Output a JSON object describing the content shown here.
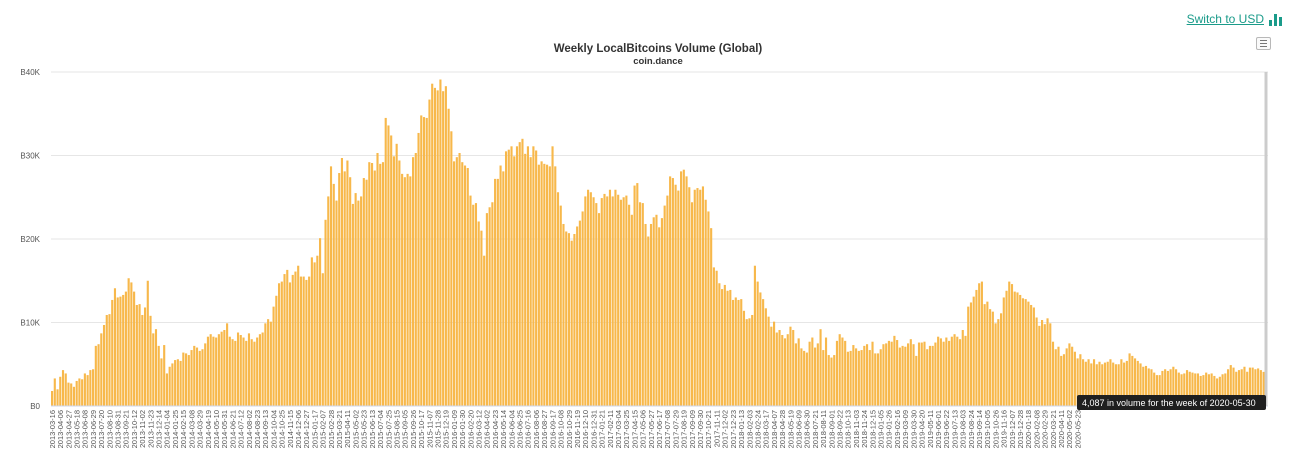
{
  "switch_link": {
    "label": "Switch to USD",
    "icon": "bar-chart-icon"
  },
  "menu": {
    "icon": "hamburger-menu-icon"
  },
  "tooltip": {
    "text": "4,087 in volume for the week of 2020-05-30"
  },
  "chart_data": {
    "type": "bar",
    "title": "Weekly LocalBitcoins Volume (Global)",
    "subtitle": "coin.dance",
    "color": "#F7B84B",
    "grid": true,
    "ylim": [
      0,
      40000
    ],
    "y_ticks": [
      "B0",
      "B10K",
      "B20K",
      "B30K",
      "B40K"
    ],
    "x_tick_labels": [
      "2013-03-16",
      "2013-04-06",
      "2013-04-27",
      "2013-05-18",
      "2013-06-08",
      "2013-06-29",
      "2013-07-20",
      "2013-08-10",
      "2013-08-31",
      "2013-09-21",
      "2013-10-12",
      "2013-11-02",
      "2013-11-23",
      "2013-12-14",
      "2014-01-04",
      "2014-01-25",
      "2014-02-15",
      "2014-03-08",
      "2014-03-29",
      "2014-04-19",
      "2014-05-10",
      "2014-05-31",
      "2014-06-21",
      "2014-07-12",
      "2014-08-02",
      "2014-08-23",
      "2014-09-13",
      "2014-10-04",
      "2014-10-25",
      "2014-11-15",
      "2014-12-06",
      "2014-12-27",
      "2015-01-17",
      "2015-02-07",
      "2015-02-28",
      "2015-03-21",
      "2015-04-11",
      "2015-05-02",
      "2015-05-23",
      "2015-06-13",
      "2015-07-04",
      "2015-07-25",
      "2015-08-15",
      "2015-09-05",
      "2015-09-26",
      "2015-10-17",
      "2015-11-07",
      "2015-11-28",
      "2015-12-19",
      "2016-01-09",
      "2016-01-30",
      "2016-02-20",
      "2016-03-12",
      "2016-04-02",
      "2016-04-23",
      "2016-05-14",
      "2016-06-04",
      "2016-06-25",
      "2016-07-16",
      "2016-08-06",
      "2016-08-27",
      "2016-09-17",
      "2016-10-08",
      "2016-10-29",
      "2016-11-19",
      "2016-12-10",
      "2016-12-31",
      "2017-01-21",
      "2017-02-11",
      "2017-03-04",
      "2017-03-25",
      "2017-04-15",
      "2017-05-06",
      "2017-05-27",
      "2017-06-17",
      "2017-07-08",
      "2017-07-29",
      "2017-08-19",
      "2017-09-09",
      "2017-09-30",
      "2017-10-21",
      "2017-11-11",
      "2017-12-02",
      "2017-12-23",
      "2018-01-13",
      "2018-02-03",
      "2018-02-24",
      "2018-03-17",
      "2018-04-07",
      "2018-04-28",
      "2018-05-19",
      "2018-06-09",
      "2018-06-30",
      "2018-07-21",
      "2018-08-11",
      "2018-09-01",
      "2018-09-22",
      "2018-10-13",
      "2018-11-03",
      "2018-11-24",
      "2018-12-15",
      "2019-01-05",
      "2019-01-26",
      "2019-02-16",
      "2019-03-09",
      "2019-03-30",
      "2019-04-20",
      "2019-05-11",
      "2019-06-01",
      "2019-06-22",
      "2019-07-13",
      "2019-08-03",
      "2019-08-24",
      "2019-09-14",
      "2019-10-05",
      "2019-10-26",
      "2019-11-16",
      "2019-12-07",
      "2019-12-28",
      "2020-01-18",
      "2020-02-08",
      "2020-02-29",
      "2020-03-21",
      "2020-04-11",
      "2020-05-02",
      "2020-05-23"
    ],
    "series": [
      {
        "values": [
          1800,
          3300,
          2000,
          3500,
          4300,
          3900,
          2800,
          2700,
          2300,
          3000,
          3300,
          3200,
          3900,
          3700,
          4300,
          4400,
          7200,
          7400,
          8700,
          9700,
          10900,
          11000,
          12700,
          14100,
          13000,
          13100,
          13300,
          13700,
          15300,
          14800,
          13700,
          12100,
          12200,
          10900,
          11800,
          15000,
          10800,
          8700,
          9200,
          7200,
          5700,
          7300,
          3900,
          4700,
          5100,
          5500,
          5600,
          5400,
          6400,
          6300,
          6100,
          6700,
          7200,
          7000,
          6600,
          6800,
          7500,
          8300,
          8600,
          8300,
          8200,
          8600,
          8900,
          9100,
          9900,
          8300,
          8000,
          7800,
          8800,
          8500,
          8200,
          7800,
          8700,
          8000,
          7700,
          8200,
          8600,
          8800,
          9900,
          10400,
          10100,
          11900,
          13200,
          14700,
          14900,
          15800,
          16300,
          14800,
          15700,
          16100,
          16800,
          15500,
          15500,
          15100,
          15500,
          17800,
          17200,
          18000,
          20100,
          15900,
          22300,
          25100,
          28700,
          26600,
          24600,
          27900,
          29700,
          28100,
          29400,
          27400,
          24200,
          25500,
          24600,
          25100,
          27300,
          27100,
          29200,
          29100,
          28200,
          30300,
          29000,
          29200,
          34500,
          33600,
          32400,
          29900,
          31400,
          29400,
          27800,
          27400,
          27800,
          27500,
          29800,
          30300,
          32700,
          34800,
          34600,
          34500,
          36700,
          38600,
          38100,
          37800,
          39100,
          37700,
          38300,
          35600,
          32900,
          29300,
          29800,
          30300,
          29200,
          28800,
          28500,
          25200,
          24100,
          24300,
          22100,
          21000,
          18000,
          23100,
          23800,
          24400,
          27200,
          27200,
          28800,
          28100,
          30500,
          30700,
          31100,
          29900,
          31100,
          31600,
          32000,
          30200,
          31100,
          29800,
          31100,
          30600,
          28900,
          29300,
          29000,
          28900,
          28700,
          31100,
          28700,
          25600,
          24000,
          21800,
          20900,
          20700,
          19800,
          20600,
          21500,
          22200,
          23300,
          25100,
          25900,
          25600,
          25000,
          24300,
          23100,
          24900,
          25400,
          25100,
          25900,
          25100,
          25900,
          25300,
          24700,
          25000,
          25200,
          24100,
          22900,
          26400,
          26700,
          24400,
          24300,
          21800,
          20300,
          21800,
          22600,
          22900,
          21400,
          22500,
          24000,
          25200,
          27500,
          27300,
          26500,
          25800,
          28100,
          28300,
          27500,
          26200,
          24400,
          25900,
          26100,
          25900,
          26300,
          24700,
          23300,
          21300,
          16600,
          16200,
          14700,
          14000,
          14500,
          13800,
          13900,
          12700,
          13000,
          12700,
          12800,
          11400,
          10400,
          10500,
          10900,
          16800,
          14900,
          13600,
          12800,
          11700,
          10700,
          9500,
          10100,
          8800,
          9100,
          8500,
          8100,
          8600,
          9500,
          9100,
          7500,
          8100,
          6900,
          6600,
          6400,
          7700,
          8200,
          7000,
          7500,
          9200,
          6700,
          8200,
          6100,
          5800,
          6100,
          7800,
          8600,
          8200,
          7800,
          6500,
          6600,
          7300,
          6900,
          6600,
          6700,
          7200,
          7400,
          6700,
          7700,
          6300,
          6300,
          6800,
          7400,
          7500,
          7800,
          7700,
          8400,
          7900,
          7000,
          7200,
          7100,
          7500,
          8000,
          7400,
          6000,
          7600,
          7600,
          7700,
          6800,
          7200,
          7200,
          7600,
          8300,
          8100,
          7700,
          8200,
          7800,
          8300,
          8600,
          8300,
          8000,
          9100,
          8400,
          11900,
          12400,
          13100,
          13900,
          14700,
          14900,
          12200,
          12500,
          11600,
          11300,
          9900,
          10400,
          11100,
          13000,
          13800,
          14900,
          14600,
          13700,
          13600,
          13300,
          12900,
          12800,
          12500,
          12100,
          11800,
          10600,
          9600,
          10300,
          9800,
          10500,
          9900,
          7700,
          6800,
          7100,
          6000,
          6200,
          6900,
          7500,
          7100,
          6500,
          5700,
          6200,
          5600,
          5300,
          5600,
          5100,
          5600,
          5000,
          5300,
          5000,
          5200,
          5300,
          5600,
          5200,
          5000,
          5000,
          5600,
          5200,
          5400,
          6300,
          6000,
          5700,
          5400,
          5100,
          4700,
          4800,
          4500,
          4400,
          4000,
          3700,
          3700,
          4200,
          4400,
          4200,
          4400,
          4700,
          4400,
          4000,
          3800,
          3900,
          4300,
          4100,
          4000,
          3900,
          3900,
          3600,
          3700,
          4000,
          3800,
          3900,
          3600,
          3300,
          3500,
          3800,
          3900,
          4400,
          4900,
          4600,
          4100,
          4300,
          4400,
          4700,
          4100,
          4600,
          4600,
          4400,
          4500,
          4300,
          4087,
          4200
        ]
      }
    ]
  }
}
